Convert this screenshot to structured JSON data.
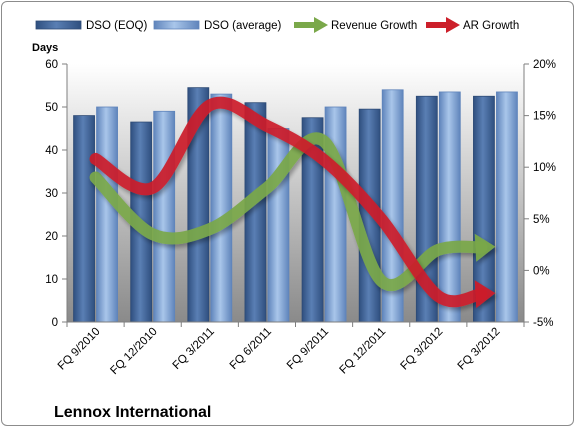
{
  "chart_data": {
    "type": "bar",
    "categories": [
      "FQ 9/2010",
      "FQ 12/2010",
      "FQ 3/2011",
      "FQ 6/2011",
      "FQ 9/2011",
      "FQ 12/2011",
      "FQ 3/2012",
      "FQ 3/2012"
    ],
    "series": [
      {
        "name": "DSO (EOQ)",
        "axis": "left",
        "kind": "bar",
        "color": "#4a6fa5",
        "values": [
          48,
          46.5,
          54.5,
          51,
          47.5,
          49.5,
          52.5,
          52.5
        ]
      },
      {
        "name": "DSO (average)",
        "axis": "left",
        "kind": "bar",
        "color": "#8fb3df",
        "values": [
          50,
          49,
          53,
          45,
          50,
          54,
          53.5,
          53.5
        ]
      },
      {
        "name": "Revenue Growth",
        "axis": "right",
        "kind": "arrow-line",
        "color": "#7aa84a",
        "values": [
          0.09,
          0.035,
          0.04,
          0.08,
          0.125,
          -0.01,
          0.02,
          0.023
        ]
      },
      {
        "name": "AR Growth",
        "axis": "right",
        "kind": "arrow-line",
        "color": "#cc1f2a",
        "values": [
          0.108,
          0.08,
          0.16,
          0.14,
          0.107,
          0.05,
          -0.025,
          -0.022
        ]
      }
    ],
    "ylabel": "Days",
    "ylim": [
      0,
      60
    ],
    "yticks": [
      "0",
      "10",
      "20",
      "30",
      "40",
      "50",
      "60"
    ],
    "y2lim": [
      -0.05,
      0.2
    ],
    "y2ticks": [
      "-5%",
      "0%",
      "5%",
      "10%",
      "15%",
      "20%"
    ],
    "legend_position": "top",
    "grid": false
  },
  "company": "Lennox International"
}
